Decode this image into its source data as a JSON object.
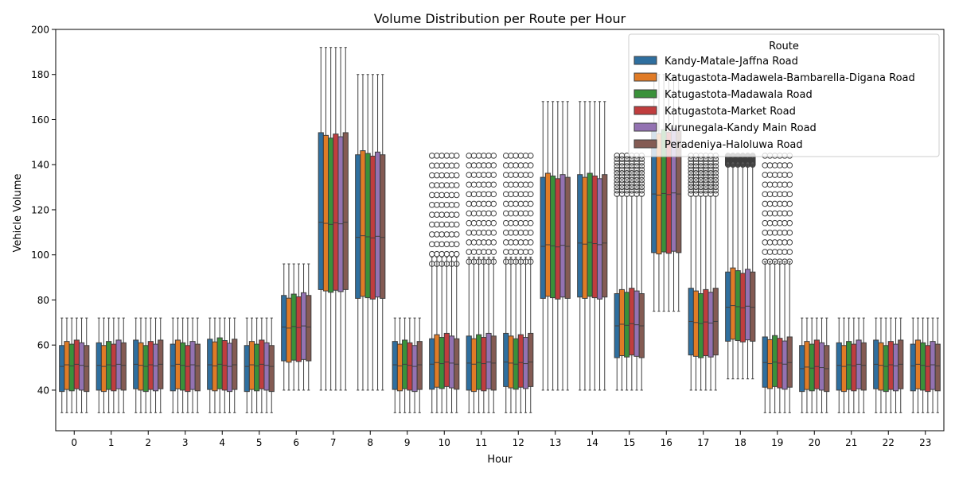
{
  "chart_data": {
    "type": "box",
    "title": "Volume Distribution per Route per Hour",
    "xlabel": "Hour",
    "ylabel": "Vehicle Volume",
    "ylim": [
      22,
      200
    ],
    "yticks": [
      40,
      60,
      80,
      100,
      120,
      140,
      160,
      180,
      200
    ],
    "categories": [
      "0",
      "1",
      "2",
      "3",
      "4",
      "5",
      "6",
      "7",
      "8",
      "9",
      "10",
      "11",
      "12",
      "13",
      "14",
      "15",
      "16",
      "17",
      "18",
      "19",
      "20",
      "21",
      "22",
      "23"
    ],
    "legend": {
      "title": "Route",
      "placement": "top-right"
    },
    "series": [
      {
        "name": "Kandy-Matale-Jaffna Road",
        "color": "#2f6f9f"
      },
      {
        "name": "Katugastota-Madawela-Bambarella-Digana Road",
        "color": "#e07b26"
      },
      {
        "name": "Katugastota-Madawala Road",
        "color": "#3a913a"
      },
      {
        "name": "Katugastota-Market Road",
        "color": "#c03d3e"
      },
      {
        "name": "Kurunegala-Kandy Main Road",
        "color": "#9372b2"
      },
      {
        "name": "Peradeniya-Haloluwa Road",
        "color": "#845b53"
      }
    ],
    "hour_stats": [
      {
        "hour": 0,
        "whisker_low": 30,
        "q1": 40,
        "median": 51,
        "q3": 61,
        "whisker_high": 72,
        "outliers_low": null,
        "outliers_high": null
      },
      {
        "hour": 1,
        "whisker_low": 30,
        "q1": 40,
        "median": 51,
        "q3": 61,
        "whisker_high": 72,
        "outliers_low": null,
        "outliers_high": null
      },
      {
        "hour": 2,
        "whisker_low": 30,
        "q1": 40,
        "median": 51,
        "q3": 61,
        "whisker_high": 72,
        "outliers_low": null,
        "outliers_high": null
      },
      {
        "hour": 3,
        "whisker_low": 30,
        "q1": 40,
        "median": 51,
        "q3": 61,
        "whisker_high": 72,
        "outliers_low": null,
        "outliers_high": null
      },
      {
        "hour": 4,
        "whisker_low": 30,
        "q1": 40,
        "median": 51,
        "q3": 62,
        "whisker_high": 72,
        "outliers_low": null,
        "outliers_high": null
      },
      {
        "hour": 5,
        "whisker_low": 30,
        "q1": 40,
        "median": 51,
        "q3": 61,
        "whisker_high": 72,
        "outliers_low": null,
        "outliers_high": null
      },
      {
        "hour": 6,
        "whisker_low": 40,
        "q1": 53,
        "median": 68,
        "q3": 82,
        "whisker_high": 96,
        "outliers_low": null,
        "outliers_high": null
      },
      {
        "hour": 7,
        "whisker_low": 40,
        "q1": 84,
        "median": 114,
        "q3": 153,
        "whisker_high": 192,
        "outliers_low": null,
        "outliers_high": null
      },
      {
        "hour": 8,
        "whisker_low": 40,
        "q1": 81,
        "median": 108,
        "q3": 145,
        "whisker_high": 180,
        "outliers_low": null,
        "outliers_high": null
      },
      {
        "hour": 9,
        "whisker_low": 30,
        "q1": 40,
        "median": 51,
        "q3": 61,
        "whisker_high": 72,
        "outliers_low": null,
        "outliers_high": null
      },
      {
        "hour": 10,
        "whisker_low": 30,
        "q1": 41,
        "median": 52,
        "q3": 64,
        "whisker_high": 99,
        "outliers_low": 96,
        "outliers_high": 144
      },
      {
        "hour": 11,
        "whisker_low": 30,
        "q1": 40,
        "median": 52,
        "q3": 64,
        "whisker_high": 99,
        "outliers_low": 97,
        "outliers_high": 144
      },
      {
        "hour": 12,
        "whisker_low": 30,
        "q1": 41,
        "median": 52,
        "q3": 64,
        "whisker_high": 99,
        "outliers_low": 97,
        "outliers_high": 144
      },
      {
        "hour": 13,
        "whisker_low": 40,
        "q1": 81,
        "median": 104,
        "q3": 135,
        "whisker_high": 168,
        "outliers_low": null,
        "outliers_high": null
      },
      {
        "hour": 14,
        "whisker_low": 40,
        "q1": 81,
        "median": 105,
        "q3": 135,
        "whisker_high": 168,
        "outliers_low": null,
        "outliers_high": null
      },
      {
        "hour": 15,
        "whisker_low": 40,
        "q1": 55,
        "median": 69,
        "q3": 84,
        "whisker_high": 126,
        "outliers_low": 127,
        "outliers_high": 144
      },
      {
        "hour": 16,
        "whisker_low": 75,
        "q1": 101,
        "median": 127,
        "q3": 155,
        "whisker_high": 180,
        "outliers_low": null,
        "outliers_high": null
      },
      {
        "hour": 17,
        "whisker_low": 40,
        "q1": 55,
        "median": 70,
        "q3": 84,
        "whisker_high": 126,
        "outliers_low": 127,
        "outliers_high": 144
      },
      {
        "hour": 18,
        "whisker_low": 45,
        "q1": 62,
        "median": 77,
        "q3": 93,
        "whisker_high": 140,
        "outliers_low": 140,
        "outliers_high": 144
      },
      {
        "hour": 19,
        "whisker_low": 30,
        "q1": 41,
        "median": 52,
        "q3": 63,
        "whisker_high": 97,
        "outliers_low": 97,
        "outliers_high": 144
      },
      {
        "hour": 20,
        "whisker_low": 30,
        "q1": 40,
        "median": 50,
        "q3": 61,
        "whisker_high": 72,
        "outliers_low": null,
        "outliers_high": null
      },
      {
        "hour": 21,
        "whisker_low": 30,
        "q1": 40,
        "median": 51,
        "q3": 61,
        "whisker_high": 72,
        "outliers_low": null,
        "outliers_high": null
      },
      {
        "hour": 22,
        "whisker_low": 30,
        "q1": 40,
        "median": 51,
        "q3": 61,
        "whisker_high": 72,
        "outliers_low": null,
        "outliers_high": null
      },
      {
        "hour": 23,
        "whisker_low": 30,
        "q1": 40,
        "median": 51,
        "q3": 61,
        "whisker_high": 72,
        "outliers_low": null,
        "outliers_high": null
      }
    ],
    "grid": false
  }
}
